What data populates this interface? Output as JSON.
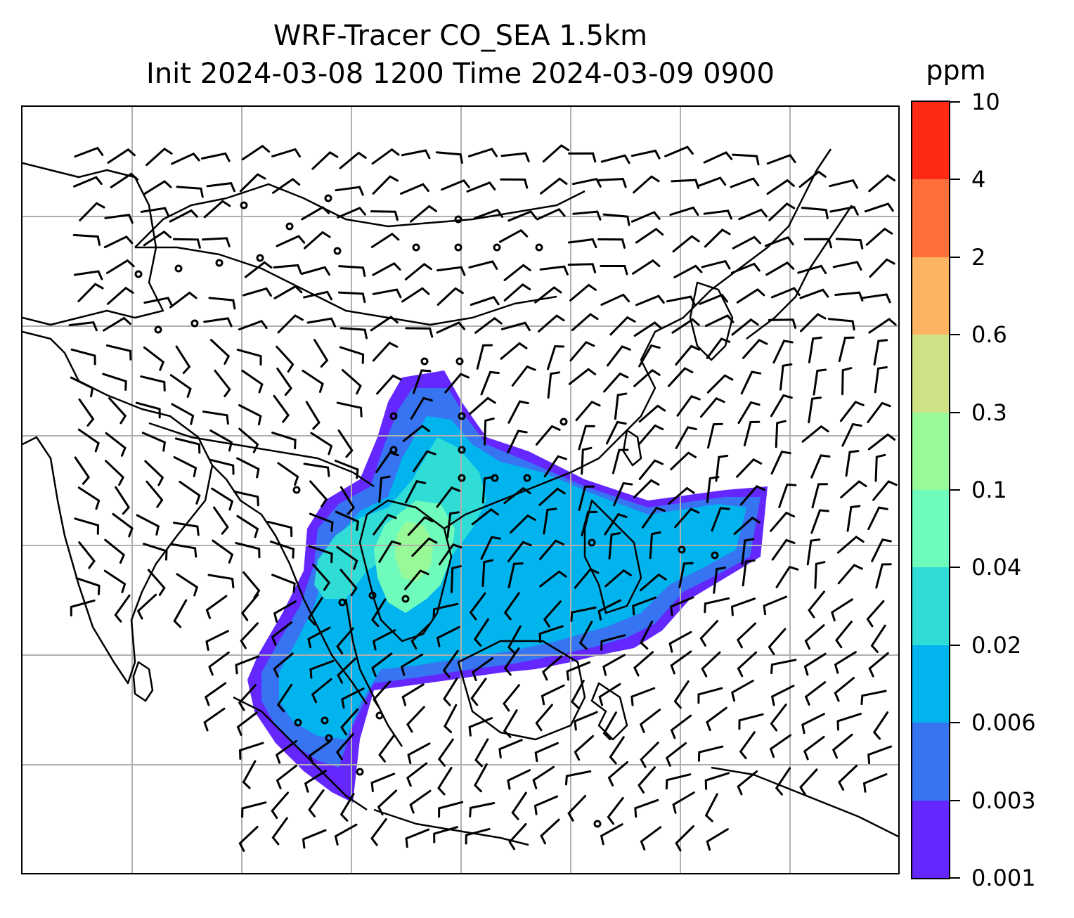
{
  "title": {
    "line1": "WRF-Tracer CO_SEA 1.5km",
    "line2": "Init 2024-03-08 1200 Time 2024-03-09 0900"
  },
  "colorbar": {
    "unit": "ppm",
    "labels": [
      "0.001",
      "0.003",
      "0.006",
      "0.02",
      "0.04",
      "0.1",
      "0.3",
      "0.6",
      "2",
      "4",
      "10"
    ],
    "colors": [
      "#6428ff",
      "#3674f2",
      "#02b4ed",
      "#2fdcd6",
      "#6ffbbc",
      "#98f999",
      "#cfe286",
      "#fdb462",
      "#fe6f3c",
      "#fe2a16"
    ]
  },
  "map": {
    "gridlines": true,
    "coastline_color": "#000000",
    "gridline_color": "#b0b0b0",
    "barb_color": "#000000"
  }
}
